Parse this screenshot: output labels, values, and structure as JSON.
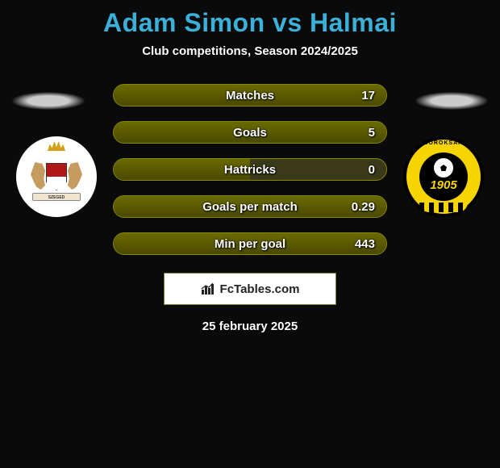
{
  "title": {
    "text": "Adam Simon vs Halmai",
    "color": "#3bb0d9",
    "fontsize": 32
  },
  "subtitle": "Club competitions, Season 2024/2025",
  "date": "25 february 2025",
  "fctables_label": "FcTables.com",
  "background_color": "#0a0a0a",
  "left_badge": {
    "banner_text": "SZEGED"
  },
  "right_badge": {
    "top_text": "SOROKSÁR",
    "year": "1905",
    "ring_color": "#f5d400"
  },
  "bar_style": {
    "track_color": "#3a3a1a",
    "fill_color_top": "#6a6a00",
    "fill_color_bottom": "#4a4a00",
    "border_color": "#888800",
    "label_fontsize": 15,
    "text_color": "#ffffff"
  },
  "stats": [
    {
      "label": "Matches",
      "value": "17",
      "fill_pct": 100
    },
    {
      "label": "Goals",
      "value": "5",
      "fill_pct": 100
    },
    {
      "label": "Hattricks",
      "value": "0",
      "fill_pct": 50
    },
    {
      "label": "Goals per match",
      "value": "0.29",
      "fill_pct": 100
    },
    {
      "label": "Min per goal",
      "value": "443",
      "fill_pct": 100
    }
  ]
}
